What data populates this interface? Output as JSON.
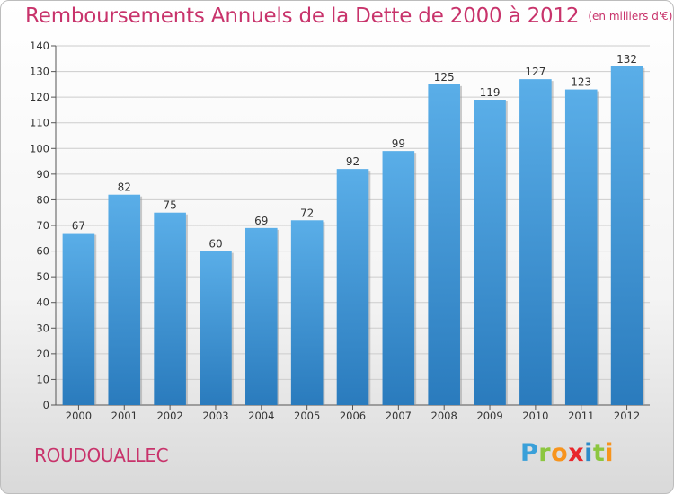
{
  "chart_data": {
    "type": "bar",
    "title": "Remboursements Annuels de la Dette de 2000 à 2012",
    "subtitle": "(en milliers d'€)",
    "categories": [
      "2000",
      "2001",
      "2002",
      "2003",
      "2004",
      "2005",
      "2006",
      "2007",
      "2008",
      "2009",
      "2010",
      "2011",
      "2012"
    ],
    "values": [
      67,
      82,
      75,
      60,
      69,
      72,
      92,
      99,
      125,
      119,
      127,
      123,
      132
    ],
    "ylim": [
      0,
      140
    ],
    "yticks": [
      0,
      10,
      20,
      30,
      40,
      50,
      60,
      70,
      80,
      90,
      100,
      110,
      120,
      130,
      140
    ],
    "grid": true,
    "legend": "none",
    "bar_color_top": "#5aaee8",
    "bar_color_bottom": "#2a7bbd"
  },
  "footer": {
    "commune": "ROUDOUALLEC",
    "logo": "Proxiti"
  },
  "colors": {
    "title": "#c8336b",
    "grid": "#cccccc"
  }
}
